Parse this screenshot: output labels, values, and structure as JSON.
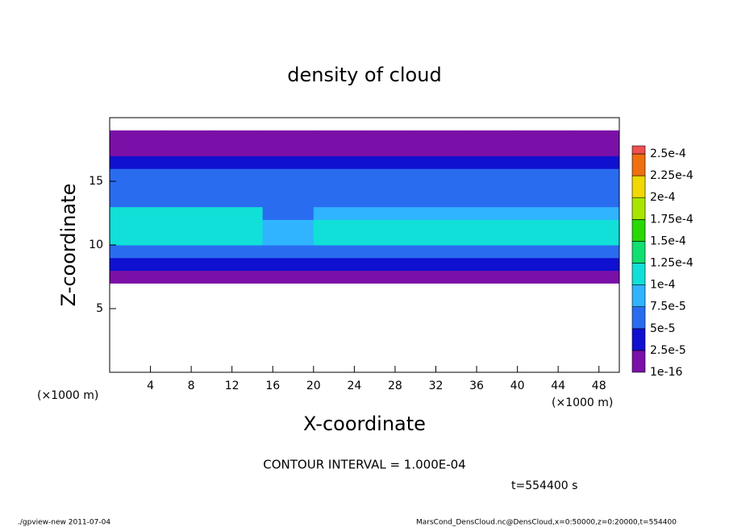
{
  "chart_data": {
    "type": "heatmap",
    "title": "density of cloud",
    "x_label": "X-coordinate",
    "y_label": "Z-coordinate",
    "x_unit": "(×1000 m)",
    "y_unit": "(×1000 m)",
    "contour_note": "CONTOUR INTERVAL = 1.000E-04",
    "time_note": "t=554400 s",
    "footer_left": "./gpview-new  2011-07-04",
    "footer_right": "MarsCond_DensCloud.nc@DensCloud,x=0:50000,z=0:20000,t=554400",
    "xlim": [
      0,
      50
    ],
    "ylim": [
      0,
      20
    ],
    "xticks": [
      4,
      8,
      12,
      16,
      20,
      24,
      28,
      32,
      36,
      40,
      44,
      48
    ],
    "yticks": [
      5,
      10,
      15
    ],
    "x": [
      0,
      5,
      10,
      15,
      20,
      25,
      30,
      35,
      40,
      45,
      50
    ],
    "y": [
      7,
      8,
      9,
      10,
      11,
      12,
      13,
      14,
      15,
      16,
      17,
      18,
      19
    ],
    "values": [
      [
        1e-05,
        1e-05,
        1e-05,
        1e-05,
        1e-05,
        1e-05,
        1e-05,
        1e-05,
        1e-05,
        1e-05
      ],
      [
        3e-05,
        3e-05,
        3e-05,
        3e-05,
        3e-05,
        3e-05,
        3e-05,
        3e-05,
        3e-05,
        3e-05
      ],
      [
        7e-05,
        7e-05,
        7e-05,
        7e-05,
        7e-05,
        7e-05,
        7e-05,
        7e-05,
        7e-05,
        7e-05
      ],
      [
        0.000105,
        0.000105,
        0.000105,
        9e-05,
        0.000105,
        0.000105,
        0.000105,
        0.000105,
        0.000105,
        0.000105
      ],
      [
        0.000105,
        0.000105,
        0.000105,
        8e-05,
        0.000105,
        0.000105,
        0.000105,
        0.000105,
        0.000105,
        0.000105
      ],
      [
        0.0001,
        0.000105,
        0.0001,
        7e-05,
        8e-05,
        8e-05,
        8e-05,
        8e-05,
        8e-05,
        8e-05
      ],
      [
        6e-05,
        6e-05,
        6e-05,
        6e-05,
        6e-05,
        6e-05,
        6e-05,
        6e-05,
        6e-05,
        6e-05
      ],
      [
        5.5e-05,
        5.5e-05,
        5.5e-05,
        5.5e-05,
        5.5e-05,
        5.5e-05,
        5.5e-05,
        5.5e-05,
        5.5e-05,
        5.5e-05
      ],
      [
        5e-05,
        5e-05,
        5e-05,
        5e-05,
        5e-05,
        5e-05,
        5e-05,
        5e-05,
        5e-05,
        5e-05
      ],
      [
        3e-05,
        3e-05,
        3e-05,
        3e-05,
        3e-05,
        3e-05,
        3e-05,
        3e-05,
        3e-05,
        3e-05
      ],
      [
        1e-05,
        1e-05,
        1e-05,
        1e-05,
        1e-05,
        1e-05,
        1e-05,
        1e-05,
        1e-05,
        1e-05
      ],
      [
        1e-05,
        1e-05,
        1e-05,
        1e-05,
        1e-05,
        1e-05,
        1e-05,
        1e-05,
        1e-05,
        1e-05
      ]
    ],
    "levels": [
      {
        "value": 1e-16,
        "label": "1e-16"
      },
      {
        "value": 2.5e-05,
        "label": "2.5e-5"
      },
      {
        "value": 5e-05,
        "label": "5e-5"
      },
      {
        "value": 7.5e-05,
        "label": "7.5e-5"
      },
      {
        "value": 0.0001,
        "label": "1e-4"
      },
      {
        "value": 0.000125,
        "label": "1.25e-4"
      },
      {
        "value": 0.00015,
        "label": "1.5e-4"
      },
      {
        "value": 0.000175,
        "label": "1.75e-4"
      },
      {
        "value": 0.0002,
        "label": "2e-4"
      },
      {
        "value": 0.000225,
        "label": "2.25e-4"
      },
      {
        "value": 0.00025,
        "label": "2.5e-4"
      }
    ],
    "colors": [
      "#7a10a8",
      "#1010d0",
      "#2a6cf0",
      "#30b4ff",
      "#10e0d8",
      "#10e070",
      "#28d800",
      "#a8e600",
      "#f0d800",
      "#f07010",
      "#f05050"
    ]
  }
}
